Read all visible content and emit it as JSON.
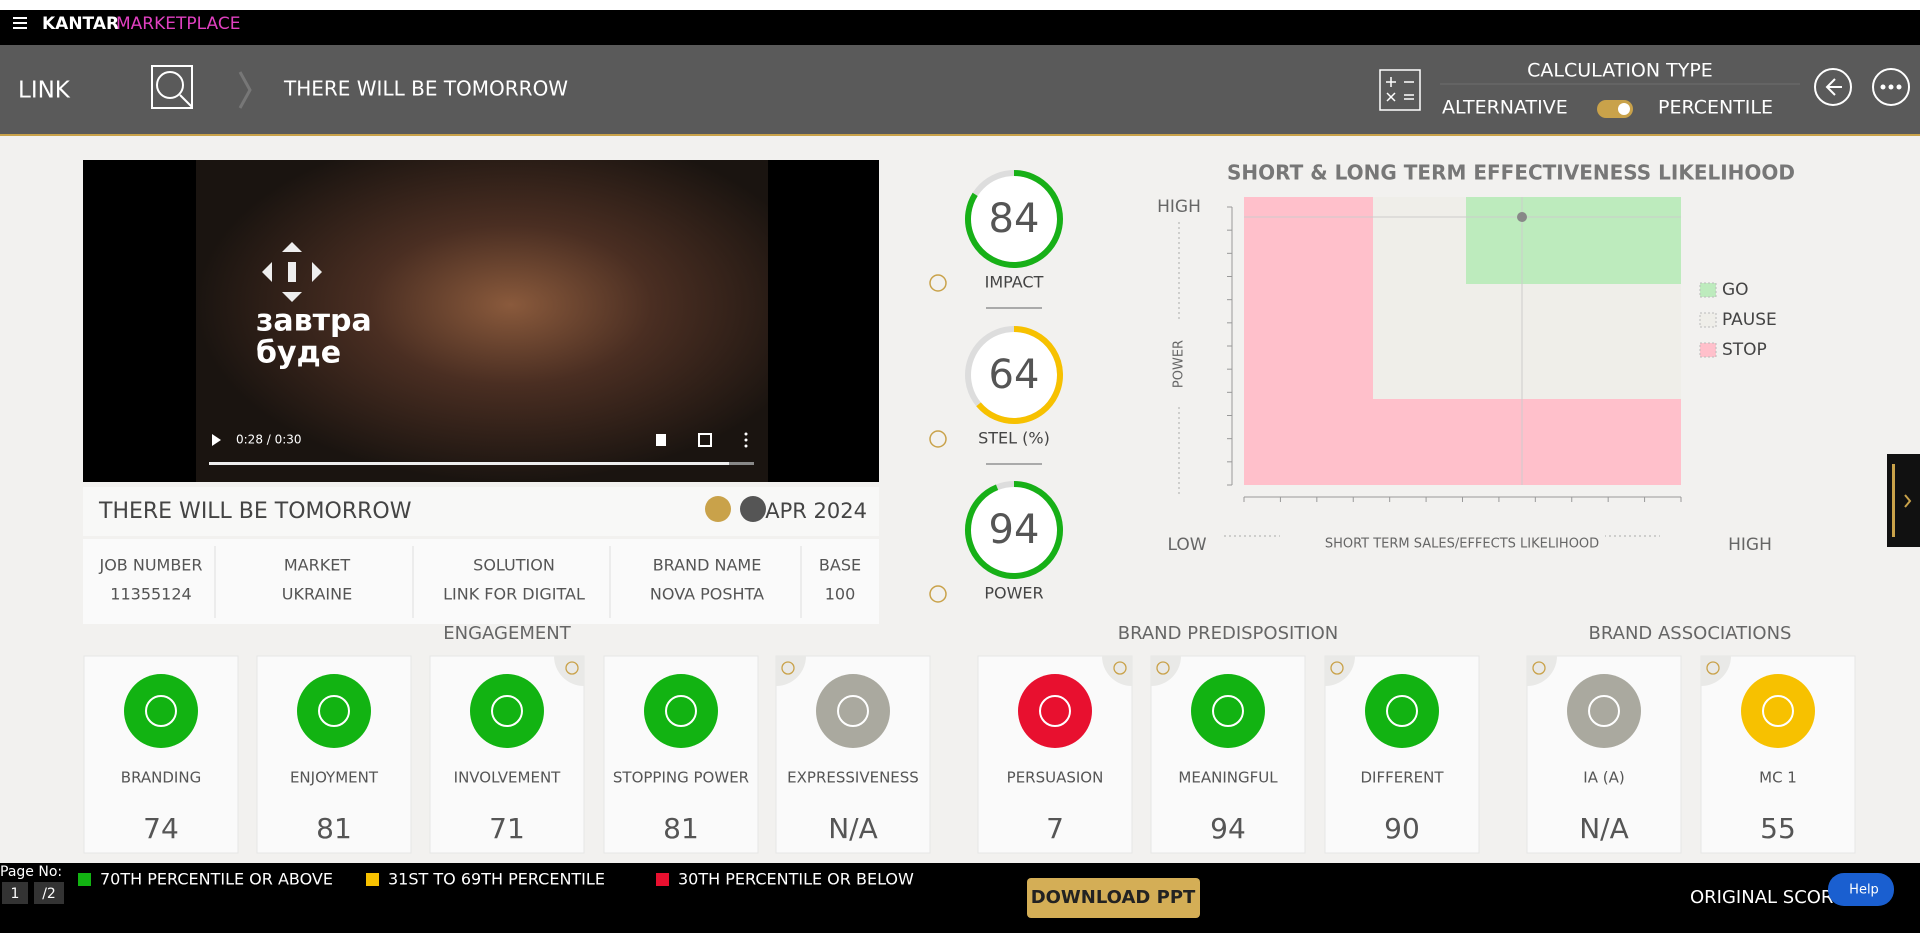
{
  "app": {
    "brand": "KANTAR",
    "brand_suffix": "MARKETPLACE"
  },
  "header": {
    "section": "LINK",
    "title": "THERE WILL BE TOMORROW",
    "calc_type_label": "CALCULATION TYPE",
    "option_left": "ALTERNATIVE",
    "option_right": "PERCENTILE"
  },
  "video": {
    "overlay_text": [
      "завтра",
      "буде"
    ],
    "time": "0:28 / 0:30"
  },
  "ad": {
    "title": "THERE WILL BE TOMORROW",
    "date": "APR 2024"
  },
  "details": [
    {
      "label": "JOB NUMBER",
      "value": 11355124
    },
    {
      "label": "MARKET",
      "value": "UKRAINE"
    },
    {
      "label": "SOLUTION",
      "value": "LINK FOR DIGITAL"
    },
    {
      "label": "BRAND NAME",
      "value": "NOVA POSHTA"
    },
    {
      "label": "BASE",
      "value": 100
    }
  ],
  "gauges": [
    {
      "label": "IMPACT",
      "value": 84,
      "color": "#17b017"
    },
    {
      "label": "STEL (%)",
      "value": 64,
      "color": "#f7c100"
    },
    {
      "label": "POWER",
      "value": 94,
      "color": "#17b017"
    }
  ],
  "quadrant": {
    "title": "SHORT & LONG TERM EFFECTIVENESS LIKELIHOOD",
    "y_high": "HIGH",
    "y_label": "POWER",
    "x_low": "LOW",
    "x_label": "SHORT TERM SALES/EFFECTS LIKELIHOOD",
    "x_high": "HIGH",
    "legend": [
      {
        "name": "GO",
        "color": "#bdebbd"
      },
      {
        "name": "PAUSE",
        "color": "#efeee9"
      },
      {
        "name": "STOP",
        "color": "#ffc0cb"
      }
    ]
  },
  "sections": [
    {
      "title": "ENGAGEMENT",
      "cards": [
        {
          "label": "BRANDING",
          "value": 74,
          "color": "#12b312"
        },
        {
          "label": "ENJOYMENT",
          "value": 81,
          "color": "#12b312"
        },
        {
          "label": "INVOLVEMENT",
          "value": 71,
          "color": "#12b312"
        },
        {
          "label": "STOPPING POWER",
          "value": 81,
          "color": "#12b312"
        },
        {
          "label": "EXPRESSIVENESS",
          "value": "N/A",
          "color": "#aaa99f"
        }
      ]
    },
    {
      "title": "BRAND PREDISPOSITION",
      "cards": [
        {
          "label": "PERSUASION",
          "value": 7,
          "color": "#e8102f"
        },
        {
          "label": "MEANINGFUL",
          "value": 94,
          "color": "#12b312"
        },
        {
          "label": "DIFFERENT",
          "value": 90,
          "color": "#12b312"
        }
      ]
    },
    {
      "title": "BRAND ASSOCIATIONS",
      "cards": [
        {
          "label": "IA (A)",
          "value": "N/A",
          "color": "#aaa99f"
        },
        {
          "label": "MC 1",
          "value": 55,
          "color": "#f7c100"
        }
      ]
    }
  ],
  "legend": [
    {
      "label": "70TH PERCENTILE OR ABOVE",
      "color": "#12b312"
    },
    {
      "label": "31ST TO 69TH PERCENTILE",
      "color": "#f7c100"
    },
    {
      "label": "30TH PERCENTILE OR BELOW",
      "color": "#e8102f"
    }
  ],
  "footer": {
    "page_label": "Page No:",
    "page": "1",
    "pages": "/2",
    "download": "DOWNLOAD PPT",
    "score": "ORIGINAL SCORE",
    "help": "Help"
  }
}
